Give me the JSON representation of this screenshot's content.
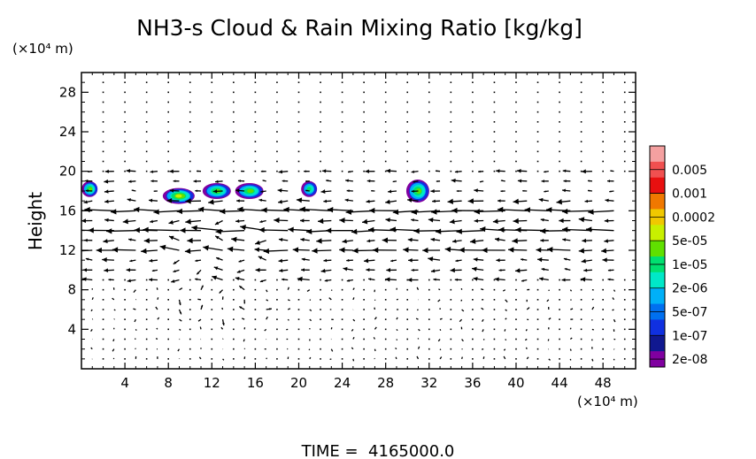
{
  "chart_data": {
    "type": "heatmap",
    "title": "NH3-s Cloud & Rain Mixing Ratio [kg/kg]",
    "ylabel": "Height",
    "x_unit": "(×10⁴ m)",
    "y_unit": "(×10⁴ m)",
    "xlim": [
      0,
      51
    ],
    "ylim": [
      0,
      30
    ],
    "x_ticks": [
      4,
      8,
      12,
      16,
      20,
      24,
      28,
      32,
      36,
      40,
      44,
      48
    ],
    "y_ticks": [
      4,
      8,
      12,
      16,
      20,
      24,
      28
    ],
    "footer": "TIME =  4165000.0",
    "colorbar": {
      "scale": "log",
      "labels": [
        "0.005",
        "0.001",
        "0.0002",
        "5e-05",
        "1e-05",
        "2e-06",
        "5e-07",
        "1e-07",
        "2e-08"
      ],
      "colors": [
        "#f4a0a0",
        "#f05050",
        "#e81010",
        "#f07800",
        "#f0c800",
        "#c8f000",
        "#60e000",
        "#00e070",
        "#00e8c8",
        "#00b0f8",
        "#0070f0",
        "#1030e0",
        "#101890",
        "#8000a0"
      ]
    },
    "cloud_patches": [
      {
        "x": 0.8,
        "y": 18.2,
        "max_level": 5e-05
      },
      {
        "x": 9.0,
        "y": 17.5,
        "max_level": 0.0002
      },
      {
        "x": 12.5,
        "y": 18.0,
        "max_level": 5e-05
      },
      {
        "x": 15.5,
        "y": 18.0,
        "max_level": 5e-05
      },
      {
        "x": 21.0,
        "y": 18.2,
        "max_level": 1e-05
      },
      {
        "x": 31.0,
        "y": 18.0,
        "max_level": 5e-05
      }
    ],
    "wind_field": {
      "type": "vector",
      "jet_levels": [
        16,
        14,
        12
      ],
      "jet_direction": "westward"
    }
  }
}
